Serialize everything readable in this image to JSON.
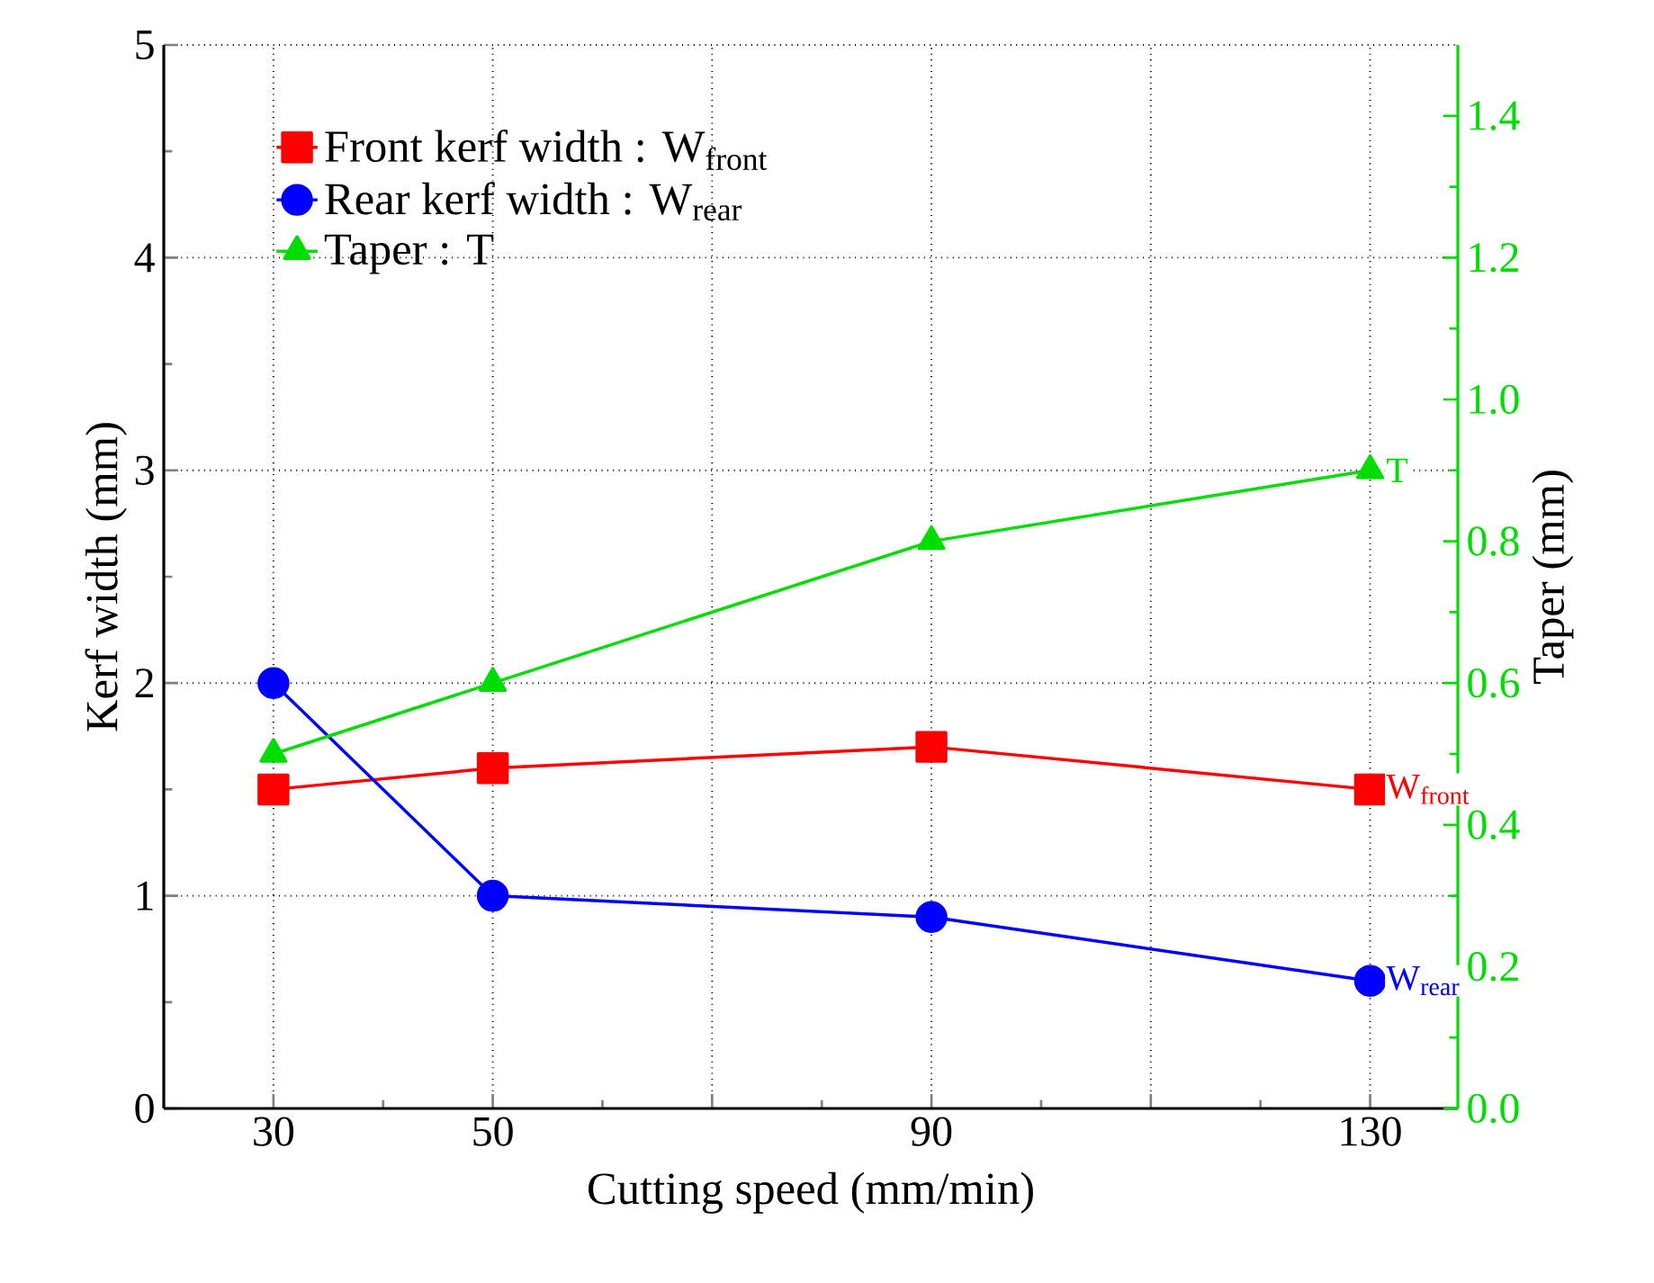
{
  "chart_data": {
    "type": "line",
    "xlabel": "Cutting speed (mm/min)",
    "ylabel": "Kerf width (mm)",
    "y2label": "Taper (mm)",
    "x": [
      30,
      50,
      90,
      130
    ],
    "xlim": [
      20,
      138
    ],
    "xticks": [
      30,
      50,
      {
        "value": 70,
        "label": null
      },
      90,
      {
        "value": 110,
        "label": null
      },
      130
    ],
    "ylim": [
      0,
      5
    ],
    "yticks": [
      0,
      1,
      2,
      3,
      4,
      5
    ],
    "y2lim": [
      0,
      1.5
    ],
    "y2ticks": [
      {
        "value": 0,
        "label": "0.0"
      },
      {
        "value": 0.2,
        "label": "0.2"
      },
      {
        "value": 0.4,
        "label": "0.4"
      },
      {
        "value": 0.6,
        "label": "0.6"
      },
      {
        "value": 0.8,
        "label": "0.8"
      },
      {
        "value": 1.0,
        "label": "1.0"
      },
      {
        "value": 1.2,
        "label": "1.2"
      },
      {
        "value": 1.4,
        "label": "1.4"
      }
    ],
    "series": [
      {
        "name": "Front kerf width : W$_{front}$",
        "color": "#ff0000",
        "marker": "square",
        "values": [
          1.5,
          1.6,
          1.7,
          1.5
        ]
      },
      {
        "name": "Rear kerf width : W$_{rear}$",
        "color": "#0000ff",
        "marker": "circle",
        "values": [
          2.0,
          1.0,
          0.9,
          0.6
        ]
      },
      {
        "name": "Taper : T",
        "color": "#00dd00",
        "marker": "triangle",
        "axis": "y2",
        "values": [
          0.5,
          0.6,
          0.8,
          0.9
        ]
      }
    ],
    "annotations": [
      "W$_{front}$",
      "W$_{rear}$",
      "T"
    ],
    "grid": true,
    "legend": "top left",
    "line_style": "solid"
  }
}
